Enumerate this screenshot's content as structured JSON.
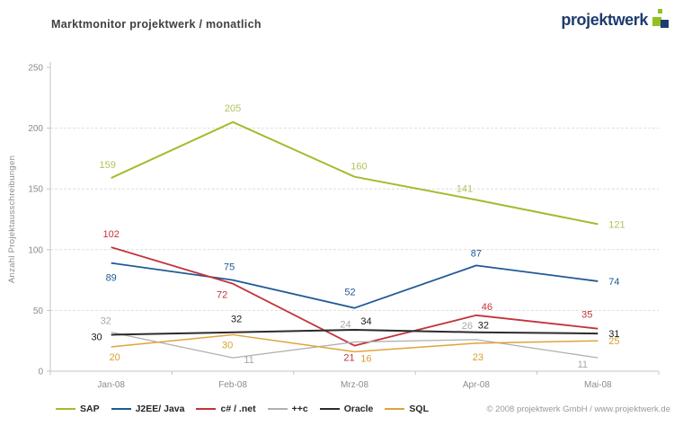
{
  "header": {
    "title": "Marktmonitor projektwerk / monatlich",
    "logo_text": "projektwerk"
  },
  "logo_colors": {
    "blue": "#1e3c6e",
    "green": "#93c01f"
  },
  "footer": {
    "copyright": "© 2008 projektwerk GmbH / www.projektwerk.de"
  },
  "chart_data": {
    "type": "line",
    "title": "Marktmonitor projektwerk / monatlich",
    "xlabel": "",
    "ylabel": "Anzahl Projektausschreibungen",
    "categories": [
      "Jan-08",
      "Feb-08",
      "Mrz-08",
      "Apr-08",
      "Mai-08"
    ],
    "ylim": [
      0,
      250
    ],
    "yticks": [
      0,
      50,
      100,
      150,
      200,
      250
    ],
    "gridlines": [
      50,
      100,
      150,
      200
    ],
    "grid": true,
    "legend_position": "bottom",
    "axis_color": "#c4c4c4",
    "grid_color": "#dedede",
    "series": [
      {
        "name": "SAP",
        "color": "#9fbe2e",
        "label_color": "#aec45c",
        "line_width": 2,
        "values": [
          159,
          205,
          160,
          141,
          121
        ],
        "label_offsets": [
          [
            -4,
            -11
          ],
          [
            0,
            -12
          ],
          [
            5,
            -8
          ],
          [
            -13,
            -9
          ],
          [
            12,
            4,
            "start"
          ]
        ]
      },
      {
        "name": "J2EE/ Java",
        "color": "#1f5a96",
        "label_color": "#1f5a96",
        "line_width": 1.8,
        "values": [
          89,
          75,
          52,
          87,
          74
        ],
        "label_offsets": [
          [
            0,
            20
          ],
          [
            -4,
            -11
          ],
          [
            -5,
            -14
          ],
          [
            0,
            -10
          ],
          [
            12,
            4,
            "start"
          ]
        ]
      },
      {
        "name": "c# / .net",
        "color": "#c2333b",
        "label_color": "#c2333b",
        "line_width": 1.8,
        "values": [
          102,
          72,
          21,
          46,
          35
        ],
        "label_offsets": [
          [
            0,
            -11
          ],
          [
            -12,
            16
          ],
          [
            -6,
            17
          ],
          [
            12,
            -6
          ],
          [
            -12,
            -12
          ]
        ]
      },
      {
        "name": "++c",
        "color": "#b0b0b0",
        "label_color": "#a8a8a8",
        "line_width": 1.3,
        "values": [
          32,
          11,
          24,
          26,
          11
        ],
        "label_offsets": [
          [
            -6,
            -9
          ],
          [
            18,
            6
          ],
          [
            -10,
            -16
          ],
          [
            -10,
            -12
          ],
          [
            -17,
            11
          ]
        ]
      },
      {
        "name": "Oracle",
        "color": "#2b2b2b",
        "label_color": "#1a1a1a",
        "line_width": 2,
        "values": [
          30,
          32,
          34,
          32,
          31
        ],
        "label_offsets": [
          [
            -10,
            6,
            "end"
          ],
          [
            4,
            -11
          ],
          [
            13,
            -6
          ],
          [
            8,
            -4
          ],
          [
            12,
            4,
            "start"
          ]
        ]
      },
      {
        "name": "SQL",
        "color": "#dfa33e",
        "label_color": "#d9a02f",
        "line_width": 1.5,
        "values": [
          20,
          30,
          16,
          23,
          25
        ],
        "label_offsets": [
          [
            4,
            15
          ],
          [
            -6,
            15
          ],
          [
            13,
            11
          ],
          [
            2,
            19
          ],
          [
            12,
            4,
            "start"
          ]
        ]
      }
    ]
  }
}
